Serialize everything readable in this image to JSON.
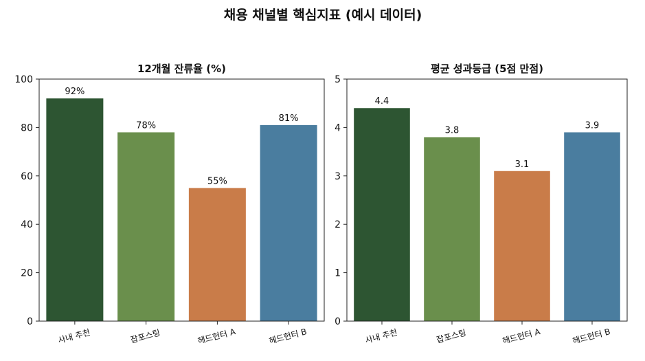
{
  "figure": {
    "title": "채용 채널별 핵심지표 (예시 데이터)"
  },
  "chart_data": [
    {
      "type": "bar",
      "title": "12개월 잔류율 (%)",
      "xlabel": "",
      "ylabel": "",
      "categories": [
        "사내 추천",
        "잡포스팅",
        "헤드헌터 A",
        "헤드헌터 B"
      ],
      "values": [
        92,
        78,
        55,
        81
      ],
      "data_labels": [
        "92%",
        "78%",
        "55%",
        "81%"
      ],
      "ylim": [
        0,
        100
      ],
      "yticks": [
        0,
        20,
        40,
        60,
        80,
        100
      ],
      "ytick_labels": [
        "0",
        "20",
        "40",
        "60",
        "80",
        "100"
      ],
      "colors": [
        "#2d5532",
        "#6a8f4c",
        "#c97c49",
        "#4a7d9f"
      ],
      "grid": false,
      "legend": "none"
    },
    {
      "type": "bar",
      "title": "평균 성과등급 (5점 만점)",
      "xlabel": "",
      "ylabel": "",
      "categories": [
        "사내 추천",
        "잡포스팅",
        "헤드헌터 A",
        "헤드헌터 B"
      ],
      "values": [
        4.4,
        3.8,
        3.1,
        3.9
      ],
      "data_labels": [
        "4.4",
        "3.8",
        "3.1",
        "3.9"
      ],
      "ylim": [
        0,
        5
      ],
      "yticks": [
        0,
        1,
        2,
        3,
        4,
        5
      ],
      "ytick_labels": [
        "0",
        "1",
        "2",
        "3",
        "4",
        "5"
      ],
      "colors": [
        "#2d5532",
        "#6a8f4c",
        "#c97c49",
        "#4a7d9f"
      ],
      "grid": false,
      "legend": "none"
    }
  ]
}
